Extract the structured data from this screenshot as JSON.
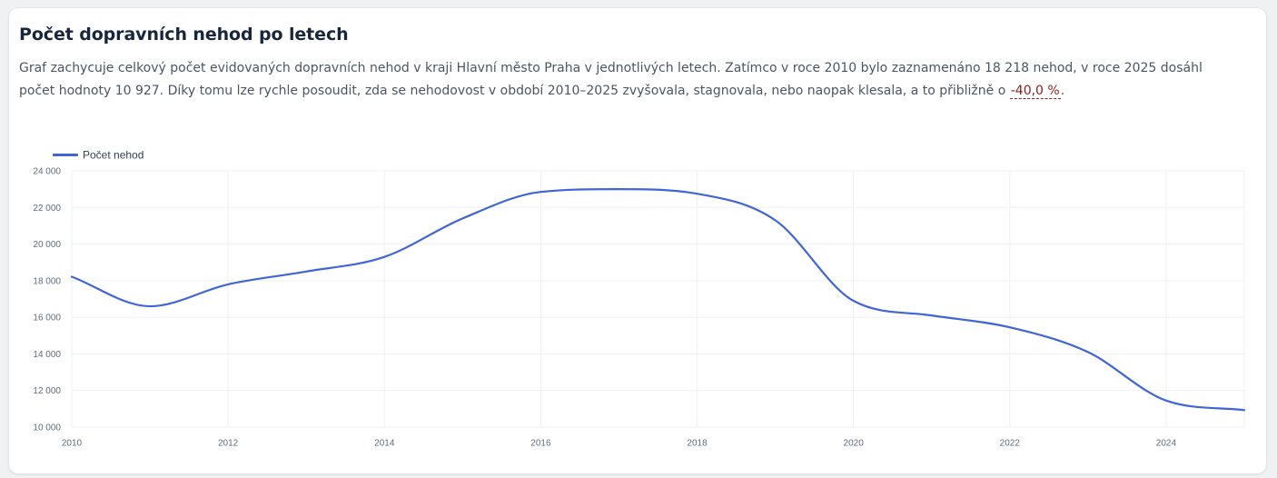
{
  "card": {
    "title": "Počet dopravních nehod po letech",
    "desc_part1": "Graf zachycuje celkový počet evidovaných dopravních nehod v kraji Hlavní město Praha v jednotlivých letech. Zatímco v roce 2010 bylo zaznamenáno 18 218 nehod, v roce 2025 dosáhl počet hodnoty 10 927. Díky tomu lze rychle posoudit, zda se nehodovost v období 2010–2025 zvyšovala, stagnovala, nebo naopak klesala, a to přibližně o",
    "desc_pct": "-40,0 %",
    "desc_end": "."
  },
  "colors": {
    "line": "#3f65d8",
    "grid": "#eef0f3"
  },
  "chart_data": {
    "type": "line",
    "x": [
      2010,
      2011,
      2012,
      2013,
      2014,
      2015,
      2016,
      2017,
      2018,
      2019,
      2020,
      2021,
      2022,
      2023,
      2024,
      2025
    ],
    "series": [
      {
        "name": "Počet nehod",
        "values": [
          18218,
          16600,
          17800,
          18500,
          19300,
          21400,
          22850,
          23000,
          22750,
          21300,
          16900,
          16100,
          15450,
          14100,
          11450,
          10927
        ]
      }
    ],
    "xticks": [
      2010,
      2012,
      2014,
      2016,
      2018,
      2020,
      2022,
      2024
    ],
    "xtick_labels": [
      "2010",
      "2012",
      "2014",
      "2016",
      "2018",
      "2020",
      "2022",
      "2024"
    ],
    "yticks": [
      10000,
      12000,
      14000,
      16000,
      18000,
      20000,
      22000,
      24000
    ],
    "ytick_labels": [
      "10 000",
      "12 000",
      "14 000",
      "16 000",
      "18 000",
      "20 000",
      "22 000",
      "24 000"
    ],
    "xlim": [
      2010,
      2025
    ],
    "ylim": [
      10000,
      24000
    ],
    "grid": true,
    "legend": "top-left",
    "smooth": true
  }
}
